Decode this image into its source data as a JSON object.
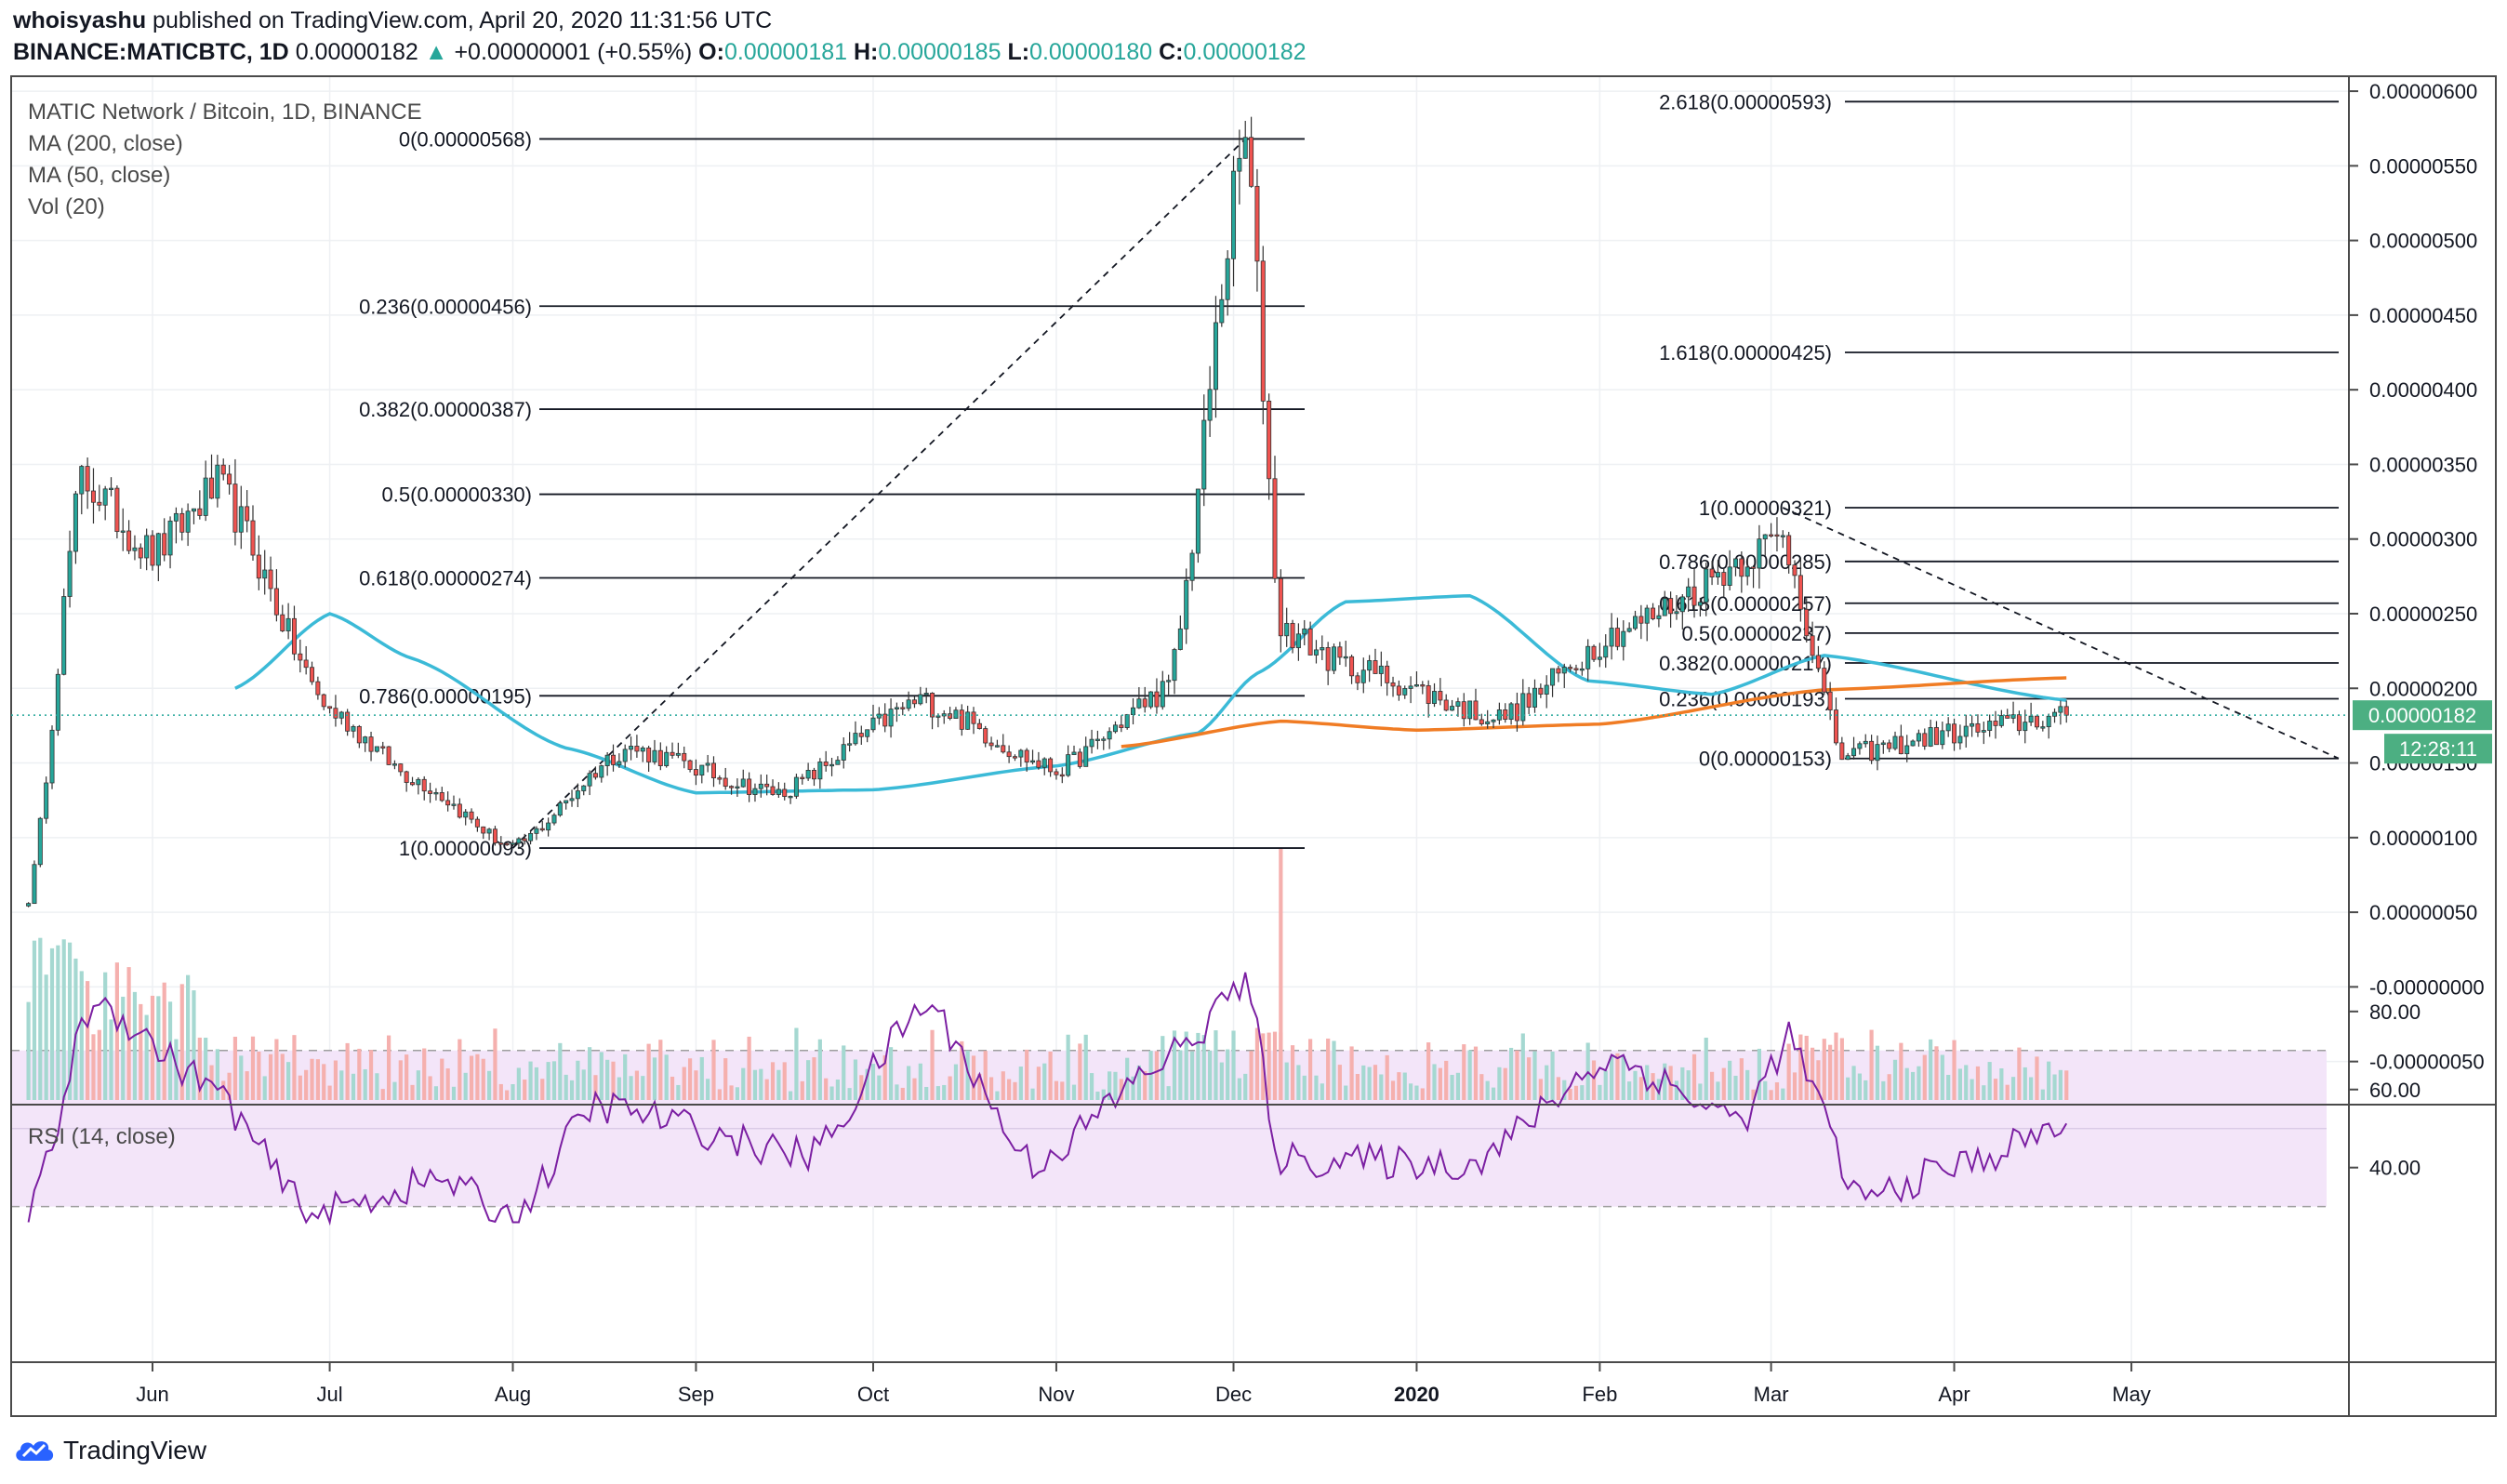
{
  "header": {
    "author": "whoisyashu",
    "published_text": "published on TradingView.com, April 20, 2020 11:31:56 UTC"
  },
  "ticker": {
    "symbol": "BINANCE:MATICBTC, 1D",
    "last": "0.00000182",
    "change": "+0.00000001 (+0.55%)",
    "open_label": "O:",
    "open": "0.00000181",
    "high_label": "H:",
    "high": "0.00000185",
    "low_label": "L:",
    "low": "0.00000180",
    "close_label": "C:",
    "close": "0.00000182"
  },
  "legend": {
    "title": "MATIC Network / Bitcoin, 1D, BINANCE",
    "ma200": "MA (200, close)",
    "ma50": "MA (50, close)",
    "vol": "Vol (20)",
    "rsi": "RSI (14, close)"
  },
  "price_badge": "0.00000182",
  "countdown_badge": "12:28:11",
  "brand": "TradingView",
  "colors": {
    "up": "#26a69a",
    "down": "#ef5350",
    "ma50": "#3bbad7",
    "ma200": "#f07c24",
    "rsi": "#7b1fa2",
    "rsi_band": "#f3e5f9",
    "badge_bg": "#4caf82"
  },
  "chart_data": [
    {
      "type": "candlestick",
      "title": "MATIC Network / Bitcoin, 1D, BINANCE",
      "x_ticks": [
        "Jun",
        "Jul",
        "Aug",
        "Sep",
        "Oct",
        "Nov",
        "Dec",
        "2020",
        "Feb",
        "Mar",
        "Apr",
        "May"
      ],
      "y_ticks": [
        "0.00000600",
        "0.00000550",
        "0.00000500",
        "0.00000450",
        "0.00000400",
        "0.00000350",
        "0.00000300",
        "0.00000250",
        "0.00000200",
        "0.00000150",
        "0.00000100",
        "0.00000050",
        "-0.00000000",
        "-0.00000050"
      ],
      "ylim": [
        -6e-07,
        6.1e-06
      ],
      "ohlc_anchors": [
        {
          "date": "2019-05-11",
          "close": 5.8e-07
        },
        {
          "date": "2019-05-20",
          "close": 3.4e-06
        },
        {
          "date": "2019-06-01",
          "close": 2.9e-06
        },
        {
          "date": "2019-06-12",
          "close": 3.35e-06
        },
        {
          "date": "2019-07-01",
          "close": 1.85e-06
        },
        {
          "date": "2019-07-15",
          "close": 1.4e-06
        },
        {
          "date": "2019-08-01",
          "close": 9.3e-07
        },
        {
          "date": "2019-08-20",
          "close": 1.6e-06
        },
        {
          "date": "2019-09-15",
          "close": 1.3e-06
        },
        {
          "date": "2019-10-09",
          "close": 1.92e-06
        },
        {
          "date": "2019-11-01",
          "close": 1.45e-06
        },
        {
          "date": "2019-11-20",
          "close": 2e-06
        },
        {
          "date": "2019-12-03",
          "close": 5.68e-06
        },
        {
          "date": "2019-12-09",
          "close": 2.4e-06
        },
        {
          "date": "2019-12-20",
          "close": 2.15e-06
        },
        {
          "date": "2020-01-15",
          "close": 1.8e-06
        },
        {
          "date": "2020-02-05",
          "close": 2.4e-06
        },
        {
          "date": "2020-03-03",
          "close": 3e-06
        },
        {
          "date": "2020-03-13",
          "close": 1.55e-06
        },
        {
          "date": "2020-04-01",
          "close": 1.7e-06
        },
        {
          "date": "2020-04-20",
          "close": 1.82e-06
        }
      ],
      "last_price": 1.82e-06,
      "fib_retracement_1": {
        "levels": [
          {
            "label": "0(0.00000568)",
            "value": 5.68e-06
          },
          {
            "label": "0.236(0.00000456)",
            "value": 4.56e-06
          },
          {
            "label": "0.382(0.00000387)",
            "value": 3.87e-06
          },
          {
            "label": "0.5(0.00000330)",
            "value": 3.3e-06
          },
          {
            "label": "0.618(0.00000274)",
            "value": 2.74e-06
          },
          {
            "label": "0.786(0.00000195)",
            "value": 1.95e-06
          },
          {
            "label": "1(0.00000093)",
            "value": 9.3e-07
          }
        ]
      },
      "fib_retracement_2": {
        "levels": [
          {
            "label": "2.618(0.00000593)",
            "value": 5.93e-06
          },
          {
            "label": "1.618(0.00000425)",
            "value": 4.25e-06
          },
          {
            "label": "1(0.00000321)",
            "value": 3.21e-06
          },
          {
            "label": "0.786(0.00000285)",
            "value": 2.85e-06
          },
          {
            "label": "0.618(0.00000257)",
            "value": 2.57e-06
          },
          {
            "label": "0.5(0.00000237)",
            "value": 2.37e-06
          },
          {
            "label": "0.382(0.00000217)",
            "value": 2.17e-06
          },
          {
            "label": "0.236(0.00000193)",
            "value": 1.93e-06
          },
          {
            "label": "0(0.00000153)",
            "value": 1.53e-06
          }
        ]
      },
      "series": [
        {
          "name": "MA (50, close)",
          "values_desc": "smooth curve from ~0.0000020 in mid-June to ~0.0000013 in Sep, rising to ~0.0000026 in Dec-Jan, ~0.0000019 in Apr"
        },
        {
          "name": "MA (200, close)",
          "values_desc": "starts mid-Nov ~0.0000016, ~0.0000018 Dec-Jan, rises to ~0.0000021 by Apr"
        },
        {
          "name": "Vol (20)",
          "values_desc": "volume bars; largest spike on Dec 9 2019"
        }
      ]
    },
    {
      "type": "line",
      "title": "RSI (14, close)",
      "y_ticks": [
        "80.00",
        "60.00",
        "40.00"
      ],
      "ylim": [
        25,
        90
      ],
      "band": [
        30,
        70
      ],
      "midline": 50,
      "series": [
        {
          "name": "RSI (14, close)",
          "anchors": [
            {
              "date": "2019-05-11",
              "value": 27
            },
            {
              "date": "2019-05-22",
              "value": 83
            },
            {
              "date": "2019-06-10",
              "value": 62
            },
            {
              "date": "2019-06-28",
              "value": 28
            },
            {
              "date": "2019-07-20",
              "value": 37
            },
            {
              "date": "2019-08-01",
              "value": 27
            },
            {
              "date": "2019-08-15",
              "value": 56
            },
            {
              "date": "2019-09-20",
              "value": 43
            },
            {
              "date": "2019-10-10",
              "value": 82
            },
            {
              "date": "2019-10-28",
              "value": 41
            },
            {
              "date": "2019-11-22",
              "value": 70
            },
            {
              "date": "2019-12-03",
              "value": 88
            },
            {
              "date": "2019-12-09",
              "value": 42
            },
            {
              "date": "2020-01-10",
              "value": 41
            },
            {
              "date": "2020-02-03",
              "value": 68
            },
            {
              "date": "2020-02-25",
              "value": 52
            },
            {
              "date": "2020-03-04",
              "value": 73
            },
            {
              "date": "2020-03-16",
              "value": 32
            },
            {
              "date": "2020-04-03",
              "value": 41
            },
            {
              "date": "2020-04-20",
              "value": 51
            }
          ]
        }
      ]
    }
  ]
}
